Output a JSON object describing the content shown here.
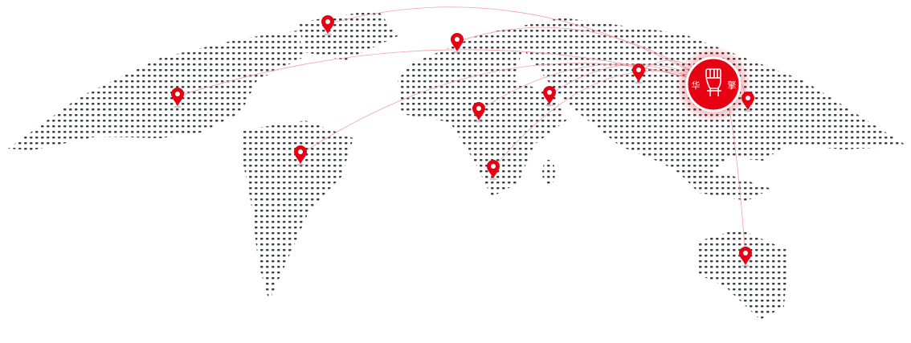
{
  "map": {
    "dot_color": "#3a3d44",
    "accent_color": "#e60012",
    "arc_color": "#f2a0a6"
  },
  "logo": {
    "text": "华擎",
    "icon": "raised-fist-icon"
  },
  "markers": {
    "icon": "map-pin-icon",
    "count": 10
  }
}
